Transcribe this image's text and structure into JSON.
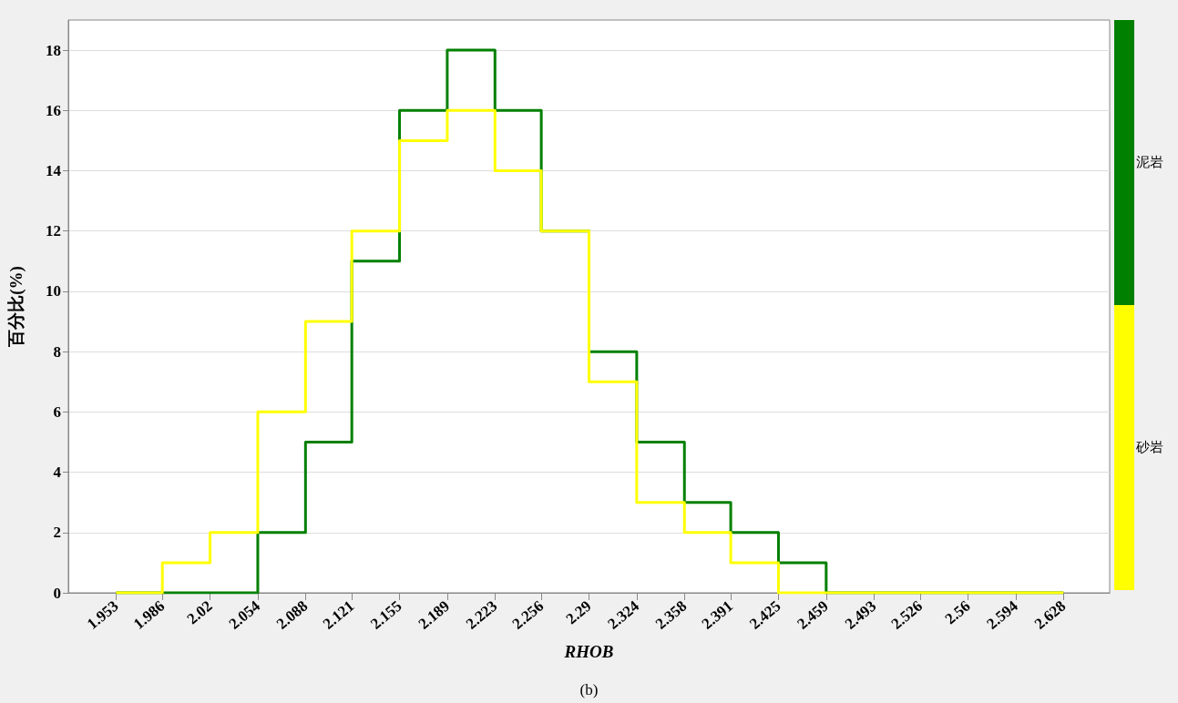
{
  "chart_data": {
    "type": "histogram",
    "xlabel": "RHOB",
    "ylabel": "百分比(%)",
    "bins": [
      1.953,
      1.986,
      2.02,
      2.054,
      2.088,
      2.121,
      2.155,
      2.189,
      2.223,
      2.256,
      2.29,
      2.324,
      2.358,
      2.391,
      2.425,
      2.459,
      2.493,
      2.526,
      2.56,
      2.594,
      2.628
    ],
    "xlim": [
      1.919,
      2.661
    ],
    "xticks": [
      1.953,
      1.986,
      2.02,
      2.054,
      2.088,
      2.121,
      2.155,
      2.189,
      2.223,
      2.256,
      2.29,
      2.324,
      2.358,
      2.391,
      2.425,
      2.459,
      2.493,
      2.526,
      2.56,
      2.594,
      2.628
    ],
    "ylim": [
      0,
      19
    ],
    "yticks": [
      0,
      2,
      4,
      6,
      8,
      10,
      12,
      14,
      16,
      18
    ],
    "series": [
      {
        "name": "泥岩",
        "color": "#008000",
        "values": [
          0,
          0,
          0,
          2,
          5,
          11,
          16,
          18,
          16,
          12,
          8,
          5,
          3,
          2,
          1,
          0,
          0,
          0,
          0,
          0
        ]
      },
      {
        "name": "砂岩",
        "color": "#ffff00",
        "values": [
          0,
          1,
          2,
          6,
          9,
          12,
          15,
          16,
          14,
          12,
          7,
          3,
          2,
          1,
          0,
          0,
          0,
          0,
          0,
          0
        ]
      }
    ],
    "grid": "y",
    "legend": "right",
    "annotations": [
      "(b)"
    ]
  }
}
